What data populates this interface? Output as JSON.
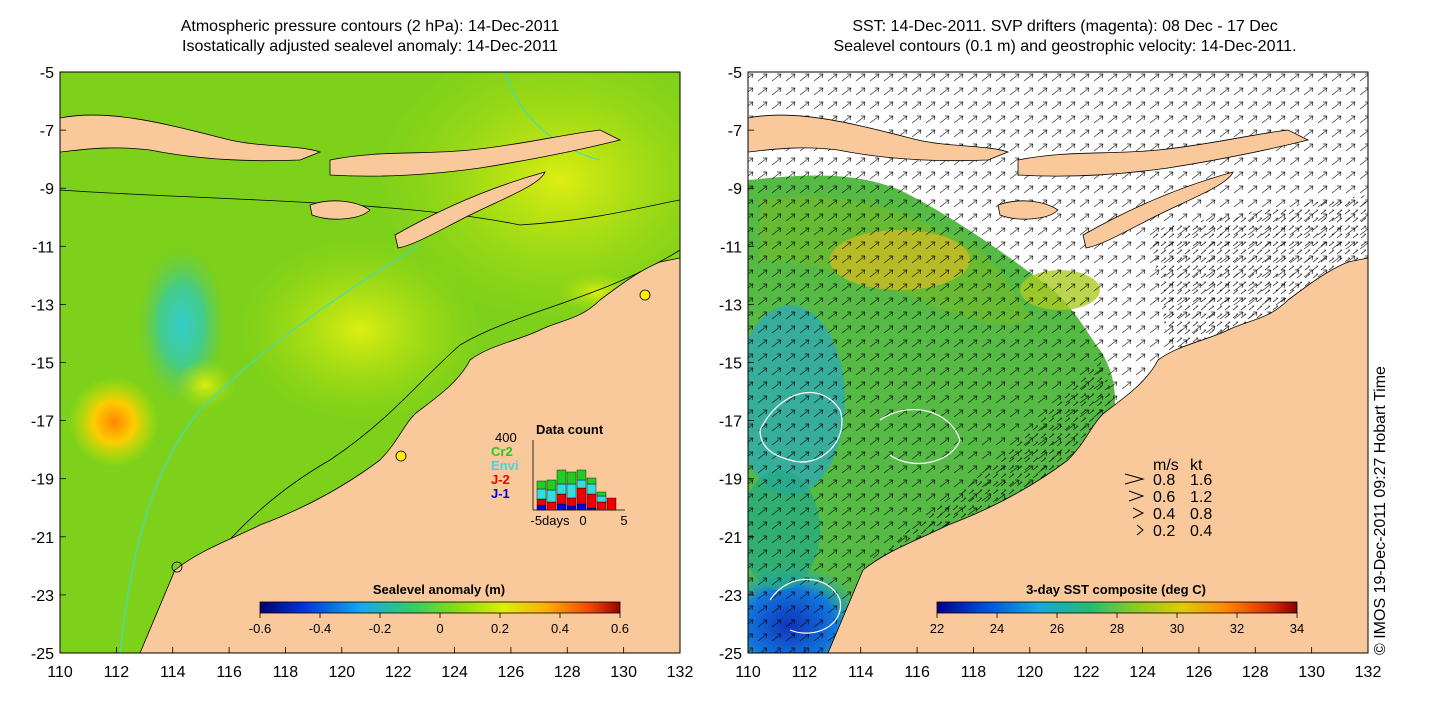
{
  "left_panel": {
    "title_line1": "Atmospheric pressure contours (2 hPa): 14-Dec-2011",
    "title_line2": "Isostatically adjusted sealevel anomaly: 14-Dec-2011",
    "colorbar_label": "Sealevel anomaly (m)",
    "colorbar_ticks": [
      "-0.6",
      "-0.4",
      "-0.2",
      "0",
      "0.2",
      "0.4",
      "0.6"
    ],
    "inset": {
      "title": "Data count",
      "ymax_label": "400",
      "legend": [
        {
          "name": "Cr2",
          "color": "#22cc22"
        },
        {
          "name": "Envi",
          "color": "#33dddd"
        },
        {
          "name": "J-2",
          "color": "#ee0000"
        },
        {
          "name": "J-1",
          "color": "#0000dd"
        }
      ],
      "x_labels": [
        "-5days",
        "0",
        "5"
      ]
    }
  },
  "right_panel": {
    "title_line1": "SST: 14-Dec-2011. SVP drifters (magenta): 08 Dec - 17 Dec",
    "title_line2": "Sealevel contours (0.1 m) and geostrophic velocity: 14-Dec-2011.",
    "colorbar_label": "3-day SST composite (deg C)",
    "colorbar_ticks": [
      "22",
      "24",
      "26",
      "28",
      "30",
      "32",
      "34"
    ],
    "velocity_legend": {
      "header_ms": "m/s",
      "header_kt": "kt",
      "rows": [
        {
          "ms": "0.8",
          "kt": "1.6"
        },
        {
          "ms": "0.6",
          "kt": "1.2"
        },
        {
          "ms": "0.4",
          "kt": "0.8"
        },
        {
          "ms": "0.2",
          "kt": "0.4"
        }
      ]
    }
  },
  "axes": {
    "x_ticks": [
      "110",
      "112",
      "114",
      "116",
      "118",
      "120",
      "122",
      "124",
      "126",
      "128",
      "130",
      "132"
    ],
    "y_ticks": [
      "-5",
      "-7",
      "-9",
      "-11",
      "-13",
      "-15",
      "-17",
      "-19",
      "-21",
      "-23",
      "-25"
    ]
  },
  "credit": "© IMOS 19-Dec-2011 09:27 Hobart Time",
  "colors": {
    "land": "#f9c89b",
    "sla_base": "#7ed11a",
    "sea_white": "#ffffff"
  }
}
